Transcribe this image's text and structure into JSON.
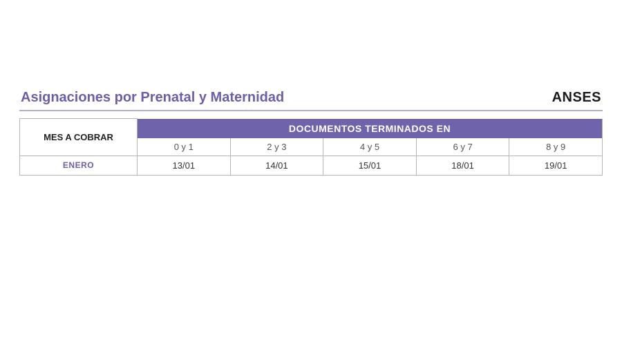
{
  "header": {
    "title": "Asignaciones por Prenatal y Maternidad",
    "brand": "ANSES"
  },
  "table": {
    "mes_header": "MES A COBRAR",
    "doc_header": "DOCUMENTOS TERMINADOS EN",
    "ranges": [
      "0 y 1",
      "2 y 3",
      "4 y 5",
      "6 y 7",
      "8 y 9"
    ],
    "rows": [
      {
        "month": "ENERO",
        "dates": [
          "13/01",
          "14/01",
          "15/01",
          "18/01",
          "19/01"
        ]
      }
    ]
  },
  "colors": {
    "accent": "#6a5fa9",
    "header_bg": "#6f63ab",
    "divider": "#b3aed0",
    "border": "#b5b5b5",
    "text_dark": "#1a1a1a",
    "text_muted": "#555"
  }
}
